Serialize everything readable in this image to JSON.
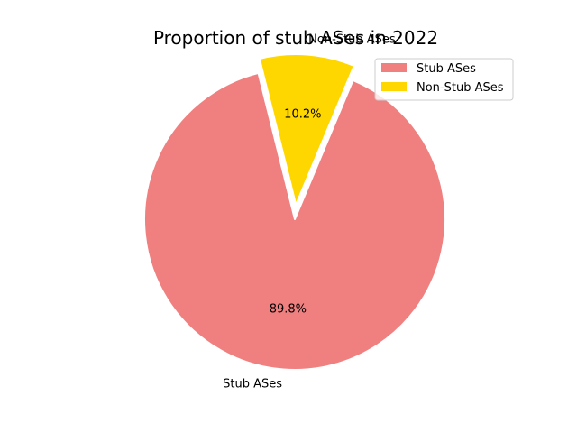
{
  "chart_data": {
    "type": "pie",
    "title": "Proportion of stub ASes in 2022",
    "slices": [
      {
        "label": "Stub ASes",
        "value": 89.8,
        "pct_label": "89.8%",
        "color": "#f08080"
      },
      {
        "label": "Non-Stub ASes",
        "value": 10.2,
        "pct_label": "10.2%",
        "color": "#ffd700",
        "exploded": true
      }
    ],
    "legend": {
      "placement": "upper-right",
      "entries": [
        "Stub ASes",
        "Non-Stub ASes"
      ]
    }
  }
}
